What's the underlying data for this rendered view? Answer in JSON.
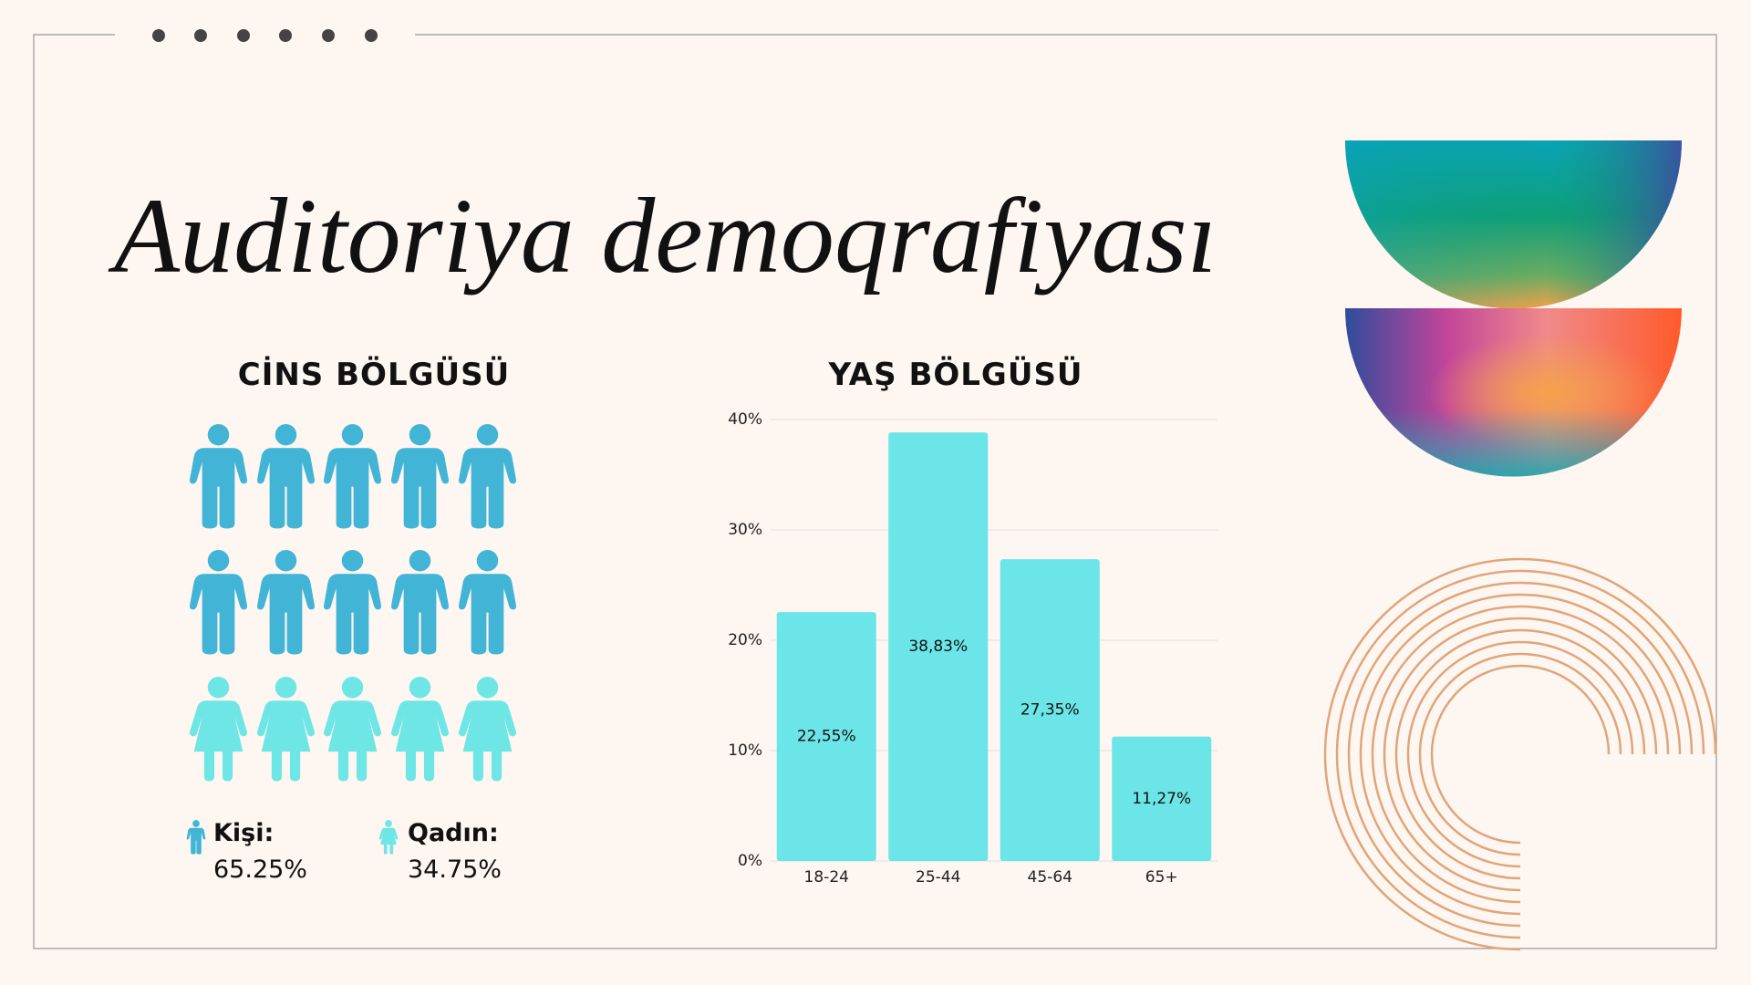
{
  "title": "Auditoriya demoqrafiyası",
  "gender": {
    "title": "CİNS BÖLGÜSÜ",
    "legend": [
      {
        "label": "Kişi:",
        "value": "65.25%"
      },
      {
        "label": "Qadın:",
        "value": "34.75%"
      }
    ]
  },
  "chart_data": {
    "type": "bar",
    "title": "YAŞ BÖLGÜSÜ",
    "categories": [
      "18-24",
      "25-44",
      "45-64",
      "65+"
    ],
    "values": [
      22.55,
      38.83,
      27.35,
      11.27
    ],
    "value_labels": [
      "22,55%",
      "38,83%",
      "27,35%",
      "11,27%"
    ],
    "color": "#6ce5e8",
    "ylim": [
      0,
      40
    ],
    "yticks": [
      {
        "value": 0,
        "label": "0%"
      },
      {
        "value": 10,
        "label": "10%"
      },
      {
        "value": 20,
        "label": "20%"
      },
      {
        "value": 30,
        "label": "30%"
      },
      {
        "value": 40,
        "label": "40%"
      }
    ],
    "grid": true
  }
}
